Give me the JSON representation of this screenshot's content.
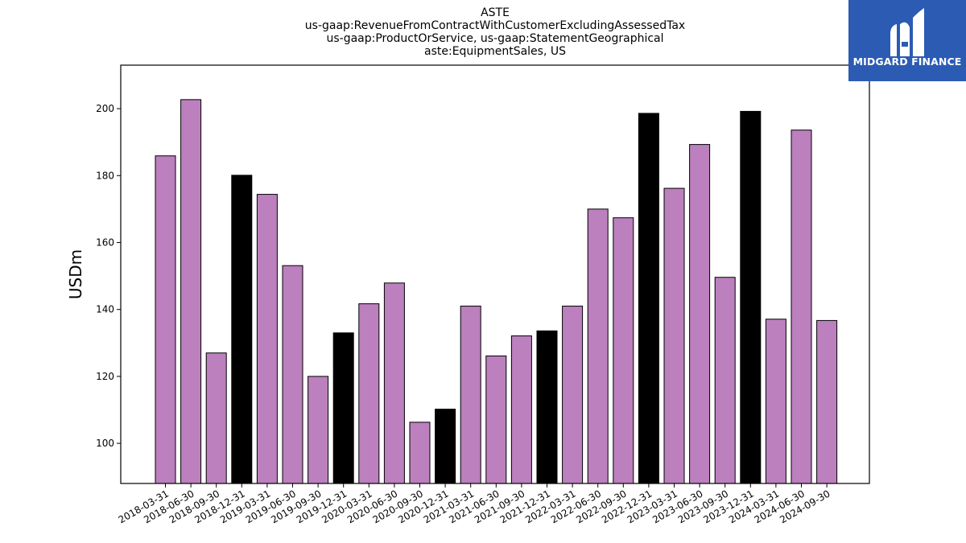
{
  "chart_data": {
    "type": "bar",
    "title_lines": [
      "ASTE",
      "us-gaap:RevenueFromContractWithCustomerExcludingAssessedTax",
      "us-gaap:ProductOrService, us-gaap:StatementGeographical",
      "aste:EquipmentSales, US"
    ],
    "ylabel": "USDm",
    "xlabel": "",
    "ylim": [
      88,
      213
    ],
    "yticks": [
      100,
      120,
      140,
      160,
      180,
      200
    ],
    "grid": false,
    "categories": [
      "2018-03-31",
      "2018-06-30",
      "2018-09-30",
      "2018-12-31",
      "2019-03-31",
      "2019-06-30",
      "2019-09-30",
      "2019-12-31",
      "2020-03-31",
      "2020-06-30",
      "2020-09-30",
      "2020-12-31",
      "2021-03-31",
      "2021-06-30",
      "2021-09-30",
      "2021-12-31",
      "2022-03-31",
      "2022-06-30",
      "2022-09-30",
      "2022-12-31",
      "2023-03-31",
      "2023-06-30",
      "2023-09-30",
      "2023-12-31",
      "2024-03-31",
      "2024-06-30",
      "2024-09-30"
    ],
    "values": [
      185.9,
      202.7,
      127.0,
      180.1,
      174.4,
      153.1,
      120.0,
      133.0,
      141.7,
      147.9,
      106.3,
      110.2,
      141.0,
      126.1,
      132.1,
      133.6,
      141.0,
      170.0,
      167.4,
      198.6,
      176.2,
      189.3,
      149.6,
      199.2,
      137.1,
      193.6,
      136.7
    ],
    "colors": {
      "quarter": "#bb80bd",
      "year_end": "#000000",
      "edge": "#000000"
    }
  },
  "logo": {
    "text": "MIDGARD FINANCE",
    "background": "#2b5bb3",
    "icon": "midgard-m-logo-icon"
  }
}
